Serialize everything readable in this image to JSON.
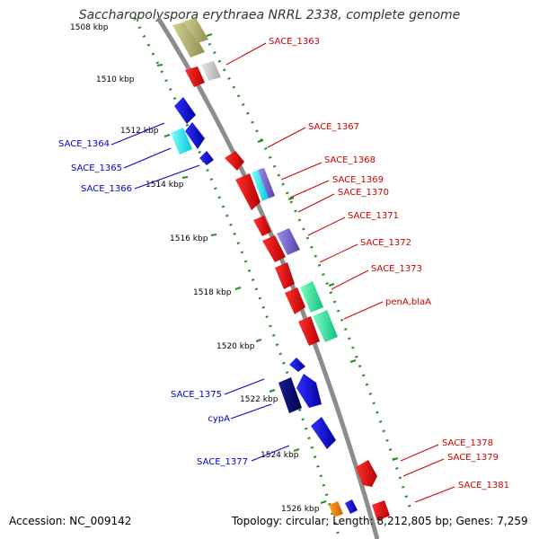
{
  "title": "Saccharopolyspora erythraea NRRL 2338, complete genome",
  "footer": {
    "accession": "Accession: NC_009142",
    "topology": "Topology: circular; Length: 8,212,805 bp; Genes: 7,259"
  },
  "colors": {
    "backbone": "#8c8c8c",
    "tick": "#2a8a2a",
    "plus_label": "#cc0000",
    "minus_label": "#0000cc"
  },
  "scale_labels": [
    "1508 kbp",
    "1510 kbp",
    "1512 kbp",
    "1514 kbp",
    "1516 kbp",
    "1518 kbp",
    "1520 kbp",
    "1522 kbp",
    "1524 kbp",
    "1526 kbp"
  ],
  "minus_strand_labels": [
    "SACE_1364",
    "SACE_1365",
    "SACE_1366",
    "SACE_1375",
    "cypA",
    "SACE_1377"
  ],
  "plus_strand_labels": [
    "SACE_1363",
    "SACE_1367",
    "SACE_1368",
    "SACE_1369",
    "SACE_1370",
    "SACE_1371",
    "SACE_1372",
    "SACE_1373",
    "penA,blaA",
    "SACE_1378",
    "SACE_1379",
    "SACE_1381"
  ]
}
